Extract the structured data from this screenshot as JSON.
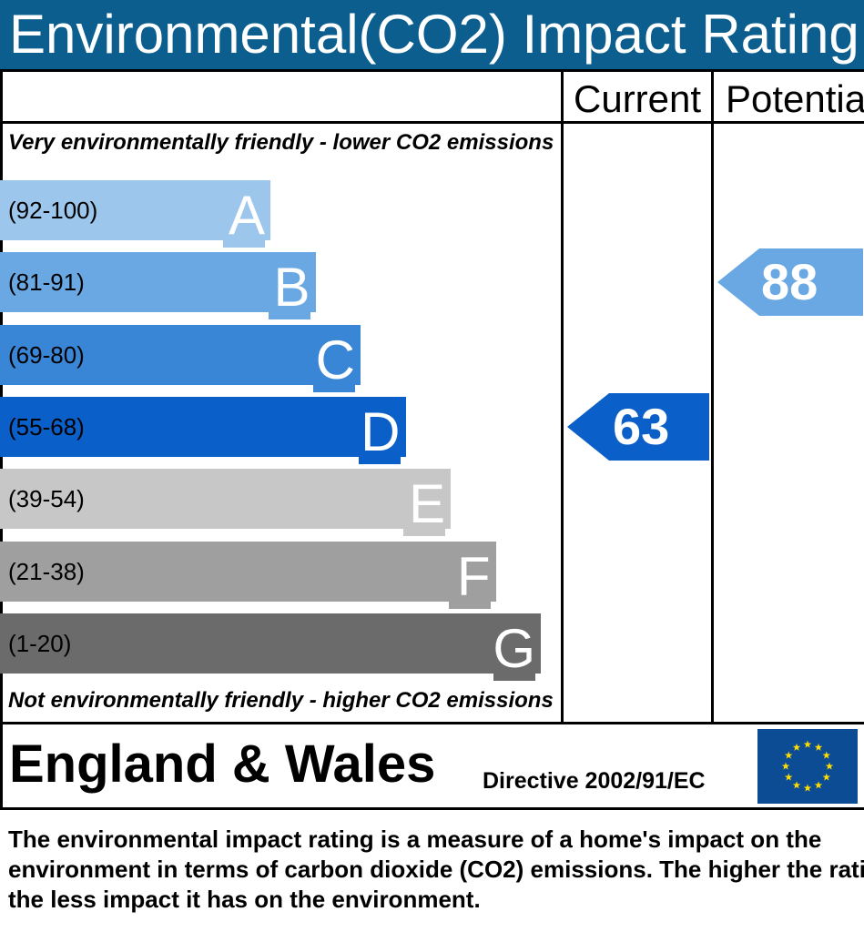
{
  "header": {
    "title": "Environmental(CO2) Impact Rating"
  },
  "columns": {
    "current": "Current",
    "potential": "Potential"
  },
  "captions": {
    "top": "Very environmentally friendly - lower CO2 emissions",
    "bottom": "Not environmentally friendly - higher CO2 emissions"
  },
  "chart_data": {
    "type": "bar",
    "title": "Environmental(CO2) Impact Rating",
    "categories": [
      "A",
      "B",
      "C",
      "D",
      "E",
      "F",
      "G"
    ],
    "bands": [
      {
        "letter": "A",
        "range": "(92-100)",
        "color": "#9dc6ec"
      },
      {
        "letter": "B",
        "range": "(81-91)",
        "color": "#6aa8e4"
      },
      {
        "letter": "C",
        "range": "(69-80)",
        "color": "#3a86d6"
      },
      {
        "letter": "D",
        "range": "(55-68)",
        "color": "#0a5fc9"
      },
      {
        "letter": "E",
        "range": "(39-54)",
        "color": "#c7c7c7"
      },
      {
        "letter": "F",
        "range": "(21-38)",
        "color": "#9f9f9f"
      },
      {
        "letter": "G",
        "range": "(1-20)",
        "color": "#6b6b6b"
      }
    ],
    "current": {
      "value": 63,
      "band": "D",
      "color": "#0a5fc9"
    },
    "potential": {
      "value": 88,
      "band": "B",
      "color": "#6aa8e4"
    }
  },
  "footer": {
    "region": "England & Wales",
    "directive": "Directive 2002/91/EC",
    "flag": "eu-flag-icon"
  },
  "description": "The environmental impact rating is a measure of a home's impact on the\nenvironment in terms of carbon dioxide (CO2) emissions. The higher the rating\nthe less impact it has on the environment."
}
